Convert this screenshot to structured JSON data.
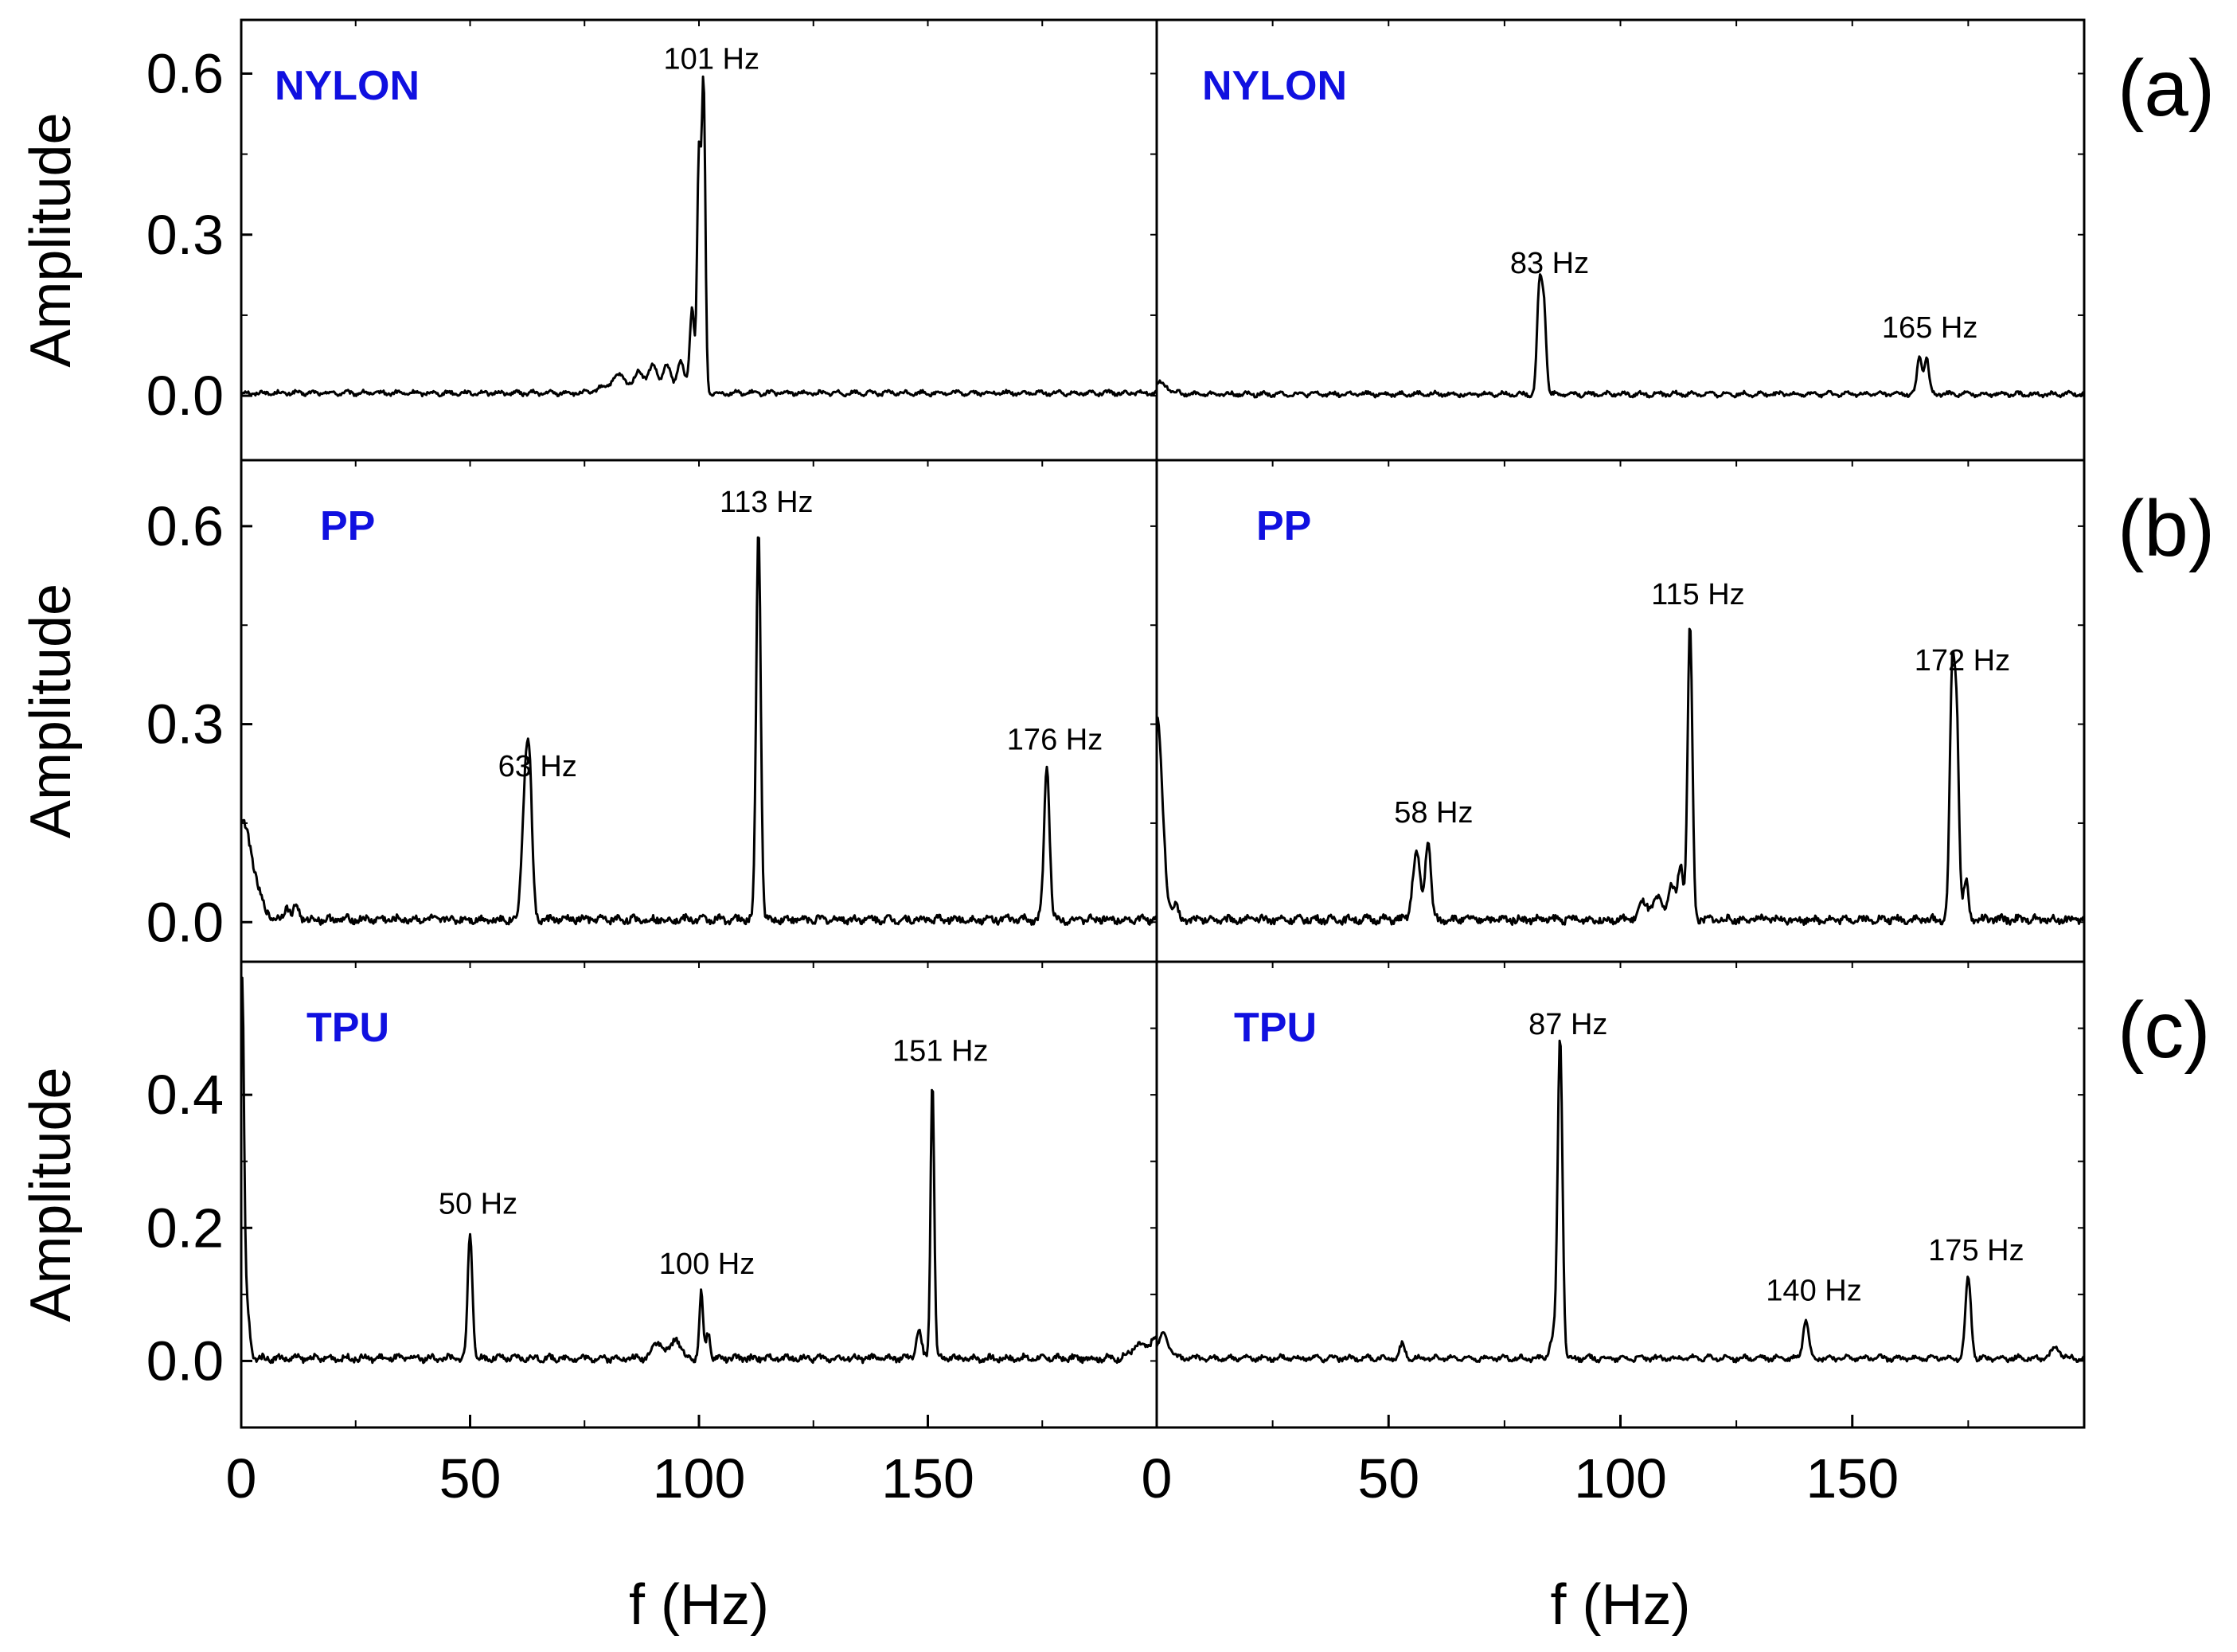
{
  "colors": {
    "line": "#000000",
    "material": "#1010e0",
    "frame": "#000000"
  },
  "axes": {
    "ylabel": "Amplitude",
    "xlabel": "f (Hz)",
    "xlim": [
      0,
      200
    ],
    "xticks": [
      0,
      50,
      100,
      150
    ],
    "xtick_labels": [
      "0",
      "50",
      "100",
      "150"
    ]
  },
  "rows": [
    {
      "tag": "(a)",
      "material": "NYLON",
      "ylim": [
        -0.12,
        0.7
      ],
      "yticks": [
        0.0,
        0.3,
        0.6
      ],
      "ytick_labels": [
        "0.0",
        "0.3",
        "0.6"
      ]
    },
    {
      "tag": "(b)",
      "material": "PP",
      "ylim": [
        -0.06,
        0.7
      ],
      "yticks": [
        0.0,
        0.3,
        0.6
      ],
      "ytick_labels": [
        "0.0",
        "0.3",
        "0.6"
      ]
    },
    {
      "tag": "(c)",
      "material": "TPU",
      "ylim": [
        -0.1,
        0.6
      ],
      "yticks": [
        0.0,
        0.2,
        0.4
      ],
      "ytick_labels": [
        "0.0",
        "0.2",
        "0.4"
      ]
    }
  ],
  "chart_data": [
    {
      "type": "line",
      "row": 0,
      "col": 0,
      "title": "NYLON",
      "xlabel": "",
      "ylabel": "Amplitude",
      "xlim": [
        0,
        200
      ],
      "ylim": [
        -0.12,
        0.7
      ],
      "baseline": 0.005,
      "noise": 0.003,
      "peaks": [
        {
          "x": 80,
          "amp": 0.012,
          "w": 2.0
        },
        {
          "x": 83,
          "amp": 0.028,
          "w": 1.5
        },
        {
          "x": 87,
          "amp": 0.04,
          "w": 1.0
        },
        {
          "x": 90,
          "amp": 0.05,
          "w": 1.0
        },
        {
          "x": 93,
          "amp": 0.05,
          "w": 0.9
        },
        {
          "x": 96,
          "amp": 0.06,
          "w": 0.8
        },
        {
          "x": 98.5,
          "amp": 0.16,
          "w": 0.5
        },
        {
          "x": 100,
          "amp": 0.44,
          "w": 0.4
        },
        {
          "x": 101,
          "amp": 0.57,
          "w": 0.4
        }
      ],
      "annotations": [
        {
          "text": "101 Hz",
          "x": 101,
          "y": 0.57
        }
      ]
    },
    {
      "type": "line",
      "row": 0,
      "col": 1,
      "title": "NYLON",
      "xlabel": "",
      "ylabel": "",
      "xlim": [
        0,
        200
      ],
      "ylim": [
        -0.12,
        0.7
      ],
      "baseline": 0.003,
      "noise": 0.003,
      "peaks": [
        {
          "x": 0.5,
          "amp": 0.02,
          "w": 2.0
        },
        {
          "x": 82.5,
          "amp": 0.19,
          "w": 0.5
        },
        {
          "x": 83.5,
          "amp": 0.16,
          "w": 0.5
        },
        {
          "x": 164.5,
          "amp": 0.07,
          "w": 0.5
        },
        {
          "x": 166,
          "amp": 0.07,
          "w": 0.5
        }
      ],
      "annotations": [
        {
          "text": "83 Hz",
          "x": 83,
          "y": 0.19
        },
        {
          "text": "165 Hz",
          "x": 165,
          "y": 0.07
        }
      ]
    },
    {
      "type": "line",
      "row": 1,
      "col": 0,
      "title": "PP",
      "xlabel": "",
      "ylabel": "Amplitude",
      "xlim": [
        0,
        200
      ],
      "ylim": [
        -0.06,
        0.7
      ],
      "baseline": 0.004,
      "noise": 0.005,
      "peaks": [
        {
          "x": 0,
          "amp": 0.15,
          "w": 2.5
        },
        {
          "x": 10,
          "amp": 0.02,
          "w": 0.6
        },
        {
          "x": 12,
          "amp": 0.02,
          "w": 0.6
        },
        {
          "x": 62,
          "amp": 0.18,
          "w": 0.7
        },
        {
          "x": 63,
          "amp": 0.19,
          "w": 0.6
        },
        {
          "x": 113,
          "amp": 0.59,
          "w": 0.5
        },
        {
          "x": 176,
          "amp": 0.23,
          "w": 0.6
        }
      ],
      "annotations": [
        {
          "text": "63 Hz",
          "x": 63,
          "y": 0.19
        },
        {
          "text": "113 Hz",
          "x": 113,
          "y": 0.59
        },
        {
          "text": "176 Hz",
          "x": 176,
          "y": 0.23
        }
      ]
    },
    {
      "type": "line",
      "row": 1,
      "col": 1,
      "title": "PP",
      "xlabel": "",
      "ylabel": "",
      "xlim": [
        0,
        200
      ],
      "ylim": [
        -0.06,
        0.7
      ],
      "baseline": 0.004,
      "noise": 0.005,
      "peaks": [
        {
          "x": 0,
          "amp": 0.31,
          "w": 1.2
        },
        {
          "x": 4,
          "amp": 0.02,
          "w": 0.6
        },
        {
          "x": 56,
          "amp": 0.1,
          "w": 0.8
        },
        {
          "x": 58.5,
          "amp": 0.12,
          "w": 0.6
        },
        {
          "x": 105,
          "amp": 0.025,
          "w": 1.0
        },
        {
          "x": 108,
          "amp": 0.03,
          "w": 1.0
        },
        {
          "x": 111,
          "amp": 0.05,
          "w": 0.8
        },
        {
          "x": 113,
          "amp": 0.08,
          "w": 0.6
        },
        {
          "x": 115,
          "amp": 0.45,
          "w": 0.5
        },
        {
          "x": 171.5,
          "amp": 0.35,
          "w": 0.5
        },
        {
          "x": 172.5,
          "amp": 0.3,
          "w": 0.5
        },
        {
          "x": 174.5,
          "amp": 0.06,
          "w": 0.5
        }
      ],
      "annotations": [
        {
          "text": "58 Hz",
          "x": 58,
          "y": 0.12
        },
        {
          "text": "115 Hz",
          "x": 115,
          "y": 0.45
        },
        {
          "text": "172 Hz",
          "x": 172,
          "y": 0.35
        }
      ]
    },
    {
      "type": "line",
      "row": 2,
      "col": 0,
      "title": "TPU",
      "xlabel": "f (Hz)",
      "ylabel": "Amplitude",
      "xlim": [
        0,
        200
      ],
      "ylim": [
        -0.1,
        0.6
      ],
      "baseline": 0.004,
      "noise": 0.004,
      "peaks": [
        {
          "x": 0.2,
          "amp": 0.55,
          "w": 0.4
        },
        {
          "x": 1.2,
          "amp": 0.08,
          "w": 0.6
        },
        {
          "x": 50,
          "amp": 0.19,
          "w": 0.5
        },
        {
          "x": 91,
          "amp": 0.025,
          "w": 1.2
        },
        {
          "x": 95,
          "amp": 0.03,
          "w": 1.0
        },
        {
          "x": 100.5,
          "amp": 0.1,
          "w": 0.4
        },
        {
          "x": 102,
          "amp": 0.04,
          "w": 0.4
        },
        {
          "x": 148,
          "amp": 0.04,
          "w": 0.6
        },
        {
          "x": 151,
          "amp": 0.42,
          "w": 0.4
        },
        {
          "x": 196,
          "amp": 0.02,
          "w": 1.5
        },
        {
          "x": 199.5,
          "amp": 0.03,
          "w": 1.0
        }
      ],
      "annotations": [
        {
          "text": "50 Hz",
          "x": 50,
          "y": 0.19
        },
        {
          "text": "100 Hz",
          "x": 100,
          "y": 0.1
        },
        {
          "text": "151 Hz",
          "x": 151,
          "y": 0.42
        }
      ]
    },
    {
      "type": "line",
      "row": 2,
      "col": 1,
      "title": "TPU",
      "xlabel": "f (Hz)",
      "ylabel": "",
      "xlim": [
        0,
        200
      ],
      "ylim": [
        -0.1,
        0.6
      ],
      "baseline": 0.004,
      "noise": 0.003,
      "peaks": [
        {
          "x": 1.5,
          "amp": 0.035,
          "w": 1.2
        },
        {
          "x": 53,
          "amp": 0.02,
          "w": 0.6
        },
        {
          "x": 87,
          "amp": 0.46,
          "w": 0.5
        },
        {
          "x": 86,
          "amp": 0.04,
          "w": 1.0
        },
        {
          "x": 140,
          "amp": 0.06,
          "w": 0.6
        },
        {
          "x": 175,
          "amp": 0.12,
          "w": 0.6
        },
        {
          "x": 194,
          "amp": 0.015,
          "w": 1.0
        }
      ],
      "annotations": [
        {
          "text": "87 Hz",
          "x": 87,
          "y": 0.46
        },
        {
          "text": "140 Hz",
          "x": 140,
          "y": 0.06
        },
        {
          "text": "175 Hz",
          "x": 175,
          "y": 0.12
        }
      ]
    }
  ]
}
